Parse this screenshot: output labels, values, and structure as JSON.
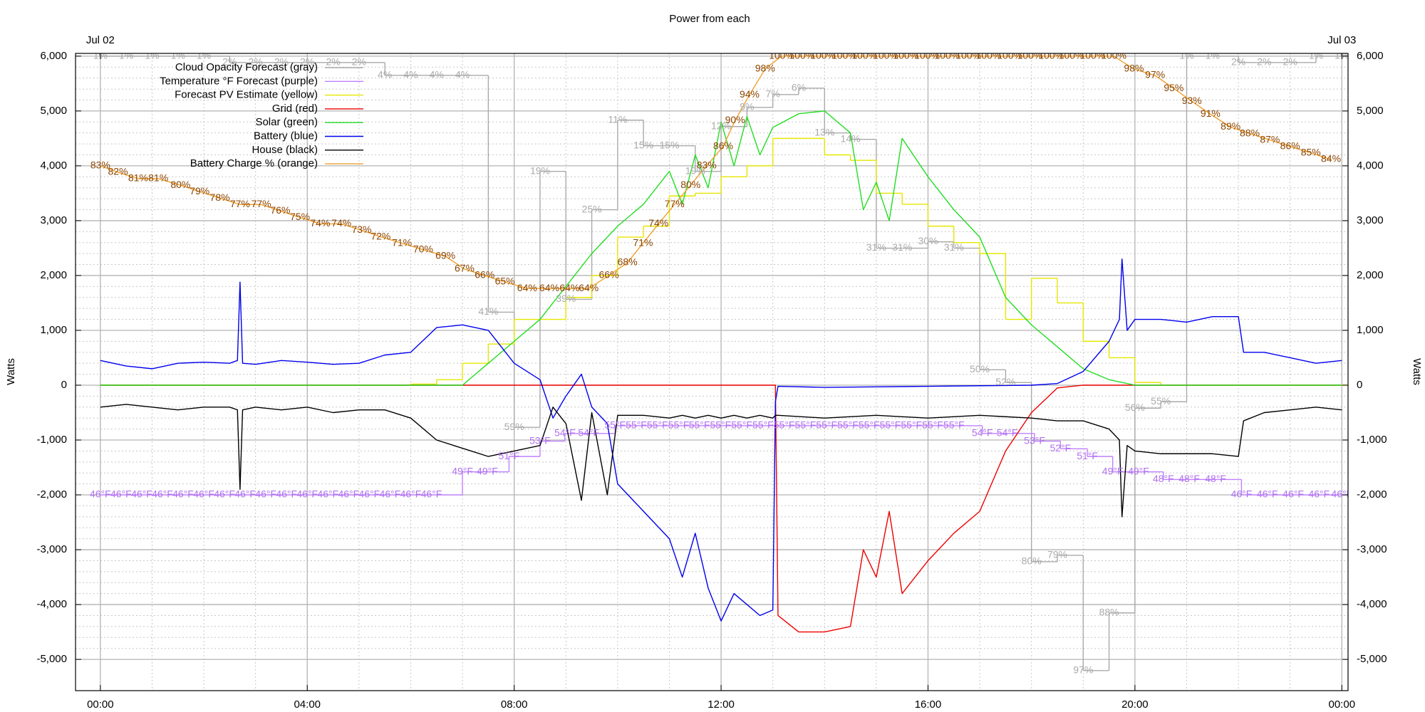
{
  "chart_data": {
    "type": "line",
    "title": "Power from each",
    "ylabel": "Watts",
    "xlim": [
      -0.48,
      24.12
    ],
    "xticks": [
      {
        "value": 0,
        "label": "00:00"
      },
      {
        "value": 4,
        "label": "04:00"
      },
      {
        "value": 8,
        "label": "08:00"
      },
      {
        "value": 12,
        "label": "12:00"
      },
      {
        "value": 16,
        "label": "16:00"
      },
      {
        "value": 20,
        "label": "20:00"
      },
      {
        "value": 24,
        "label": "00:00"
      }
    ],
    "x2ticks": [
      {
        "value": 0,
        "label": "Jul 02"
      },
      {
        "value": 24,
        "label": "Jul 03"
      }
    ],
    "ylim": [
      -5570,
      6050
    ],
    "yticks": [
      {
        "value": -5000,
        "label": "-5,000"
      },
      {
        "value": -4000,
        "label": "-4,000"
      },
      {
        "value": -3000,
        "label": "-3,000"
      },
      {
        "value": -2000,
        "label": "-2,000"
      },
      {
        "value": -1000,
        "label": "-1,000"
      },
      0,
      {
        "value": 1000,
        "label": "1,000"
      },
      {
        "value": 2000,
        "label": "2,000"
      },
      {
        "value": 3000,
        "label": "3,000"
      },
      {
        "value": 4000,
        "label": "4,000"
      },
      {
        "value": 5000,
        "label": "5,000"
      },
      {
        "value": 6000,
        "label": "6,000"
      }
    ],
    "y2lim": [
      1.66,
      100.42
    ],
    "y3lim": [
      20.5,
      103.5
    ],
    "y4lim": [
      100.14,
      0.57
    ],
    "grid": true,
    "legend": "top-left",
    "series": [
      {
        "name": "Cloud Opacity Forecast (gray)",
        "color": "#aaaaaa",
        "label_color": "#aaaaaa",
        "axis": "y4",
        "step": true,
        "x": [
          0,
          0.5,
          1,
          1.5,
          2,
          2.5,
          3,
          3.5,
          4,
          4.5,
          5,
          5.5,
          6,
          6.5,
          7,
          7.5,
          8,
          8.5,
          9,
          9.5,
          10,
          10.5,
          11,
          11.5,
          12,
          12.5,
          13,
          13.5,
          14,
          14.5,
          15,
          15.5,
          16,
          16.5,
          17,
          17.5,
          18,
          18.5,
          19,
          19.5,
          20,
          20.5,
          21,
          21.5,
          22,
          22.5,
          23,
          23.5,
          24
        ],
        "values": [
          1,
          1,
          1,
          1,
          1,
          2,
          2,
          2,
          2,
          2,
          2,
          4,
          4,
          4,
          4,
          41,
          59,
          19,
          39,
          25,
          11,
          15,
          15,
          19,
          12,
          9,
          7,
          6,
          13,
          14,
          31,
          31,
          30,
          31,
          50,
          52,
          80,
          79,
          97,
          88,
          56,
          55,
          1,
          1,
          2,
          2,
          2,
          1,
          1
        ],
        "value_labels": [
          "1%",
          "1%",
          "1%",
          "1%",
          "1%",
          "2%",
          "2%",
          "2%",
          "2%",
          "2%",
          "2%",
          "4%",
          "4%",
          "4%",
          "4%",
          "41%",
          "59%",
          "19%",
          "39%",
          "25%",
          "11%",
          "15%",
          "15%",
          "19%",
          "12%",
          "9%",
          "7%",
          "6%",
          "13%",
          "14%",
          "31%",
          "31%",
          "30%",
          "31%",
          "50%",
          "52%",
          "80%",
          "79%",
          "97%",
          "88%",
          "56%",
          "55%",
          "1%",
          "1%",
          "2%",
          "2%",
          "2%",
          "1%",
          "1%"
        ]
      },
      {
        "name": "Temperature °F Forecast (purple)",
        "color": "#c080ff",
        "label_color": "#b070f0",
        "axis": "y3",
        "step": true,
        "x": [
          0,
          0.4,
          0.8,
          1.2,
          1.6,
          2.0,
          2.4,
          2.8,
          3.2,
          3.6,
          4.0,
          4.4,
          4.8,
          5.2,
          5.6,
          6.0,
          6.4,
          7.0,
          7.48,
          7.9,
          8.5,
          8.98,
          9.44,
          9.95,
          10.36,
          10.77,
          11.18,
          11.58,
          11.99,
          12.4,
          12.81,
          13.22,
          13.63,
          14.04,
          14.45,
          14.86,
          15.27,
          15.68,
          16.09,
          16.5,
          17.05,
          17.53,
          18.06,
          18.56,
          19.08,
          19.57,
          20.07,
          20.55,
          21.05,
          21.56,
          22.06,
          22.56,
          23.06,
          23.56,
          24.0
        ],
        "values": [
          46,
          46,
          46,
          46,
          46,
          46,
          46,
          46,
          46,
          46,
          46,
          46,
          46,
          46,
          46,
          46,
          46,
          49,
          49,
          51,
          53,
          54,
          54,
          55,
          55,
          55,
          55,
          55,
          55,
          55,
          55,
          55,
          55,
          55,
          55,
          55,
          55,
          55,
          55,
          55,
          54,
          54,
          53,
          52,
          51,
          49,
          49,
          48,
          48,
          48,
          46,
          46,
          46,
          46,
          46
        ],
        "value_labels": [
          "46°F",
          "46°F",
          "46°F",
          "46°F",
          "46°F",
          "46°F",
          "46°F",
          "46°F",
          "46°F",
          "46°F",
          "46°F",
          "46°F",
          "46°F",
          "46°F",
          "46°F",
          "46°F",
          "46°F",
          "49°F",
          "49°F",
          "51°F",
          "53°F",
          "54°F",
          "54°F",
          "55°F",
          "55°F",
          "55°F",
          "55°F",
          "55°F",
          "55°F",
          "55°F",
          "55°F",
          "55°F",
          "55°F",
          "55°F",
          "55°F",
          "55°F",
          "55°F",
          "55°F",
          "55°F",
          "55°F",
          "54°F",
          "54°F",
          "53°F",
          "52°F",
          "51°F",
          "49°F",
          "49°F",
          "48°F",
          "48°F",
          "48°F",
          "46°F",
          "46°F",
          "46°F",
          "46°F",
          "46°F"
        ]
      },
      {
        "name": "Forecast PV Estimate (yellow)",
        "color": "#e6e600",
        "step": true,
        "x": [
          0,
          6,
          6.5,
          7,
          7.5,
          8,
          8.5,
          9,
          9.5,
          10,
          10.5,
          11,
          11.5,
          12,
          12.5,
          13,
          13.5,
          14,
          14.5,
          15,
          15.5,
          16,
          16.5,
          17,
          17.5,
          18,
          18.5,
          19,
          19.5,
          20,
          20.5
        ],
        "values": [
          0,
          20,
          100,
          400,
          750,
          1200,
          1200,
          1600,
          2000,
          2700,
          2900,
          3450,
          3500,
          3800,
          4000,
          4500,
          4500,
          4200,
          4100,
          3500,
          3300,
          2900,
          2600,
          2400,
          1200,
          1950,
          1500,
          800,
          500,
          50,
          0
        ]
      },
      {
        "name": "Grid (red)",
        "color": "#ee0000",
        "x": [
          0,
          13.05,
          13.1,
          13.5,
          14,
          14.5,
          14.75,
          15,
          15.25,
          15.5,
          16,
          16.5,
          17,
          17.5,
          18,
          18.5,
          19,
          24
        ],
        "values": [
          0,
          0,
          -4200,
          -4500,
          -4500,
          -4400,
          -3000,
          -3500,
          -2300,
          -3800,
          -3200,
          -2700,
          -2300,
          -1200,
          -500,
          -50,
          0,
          0
        ]
      },
      {
        "name": "Solar (green)",
        "color": "#22dd22",
        "x": [
          0,
          7,
          7.5,
          8,
          8.5,
          9,
          9.5,
          10,
          10.5,
          11,
          11.25,
          11.5,
          11.75,
          12,
          12.25,
          12.5,
          12.75,
          13,
          13.5,
          14,
          14.5,
          14.75,
          15,
          15.25,
          15.5,
          16,
          16.5,
          17,
          17.5,
          18,
          18.5,
          19,
          19.5,
          20,
          24
        ],
        "values": [
          0,
          0,
          400,
          800,
          1200,
          1800,
          2400,
          2900,
          3300,
          3900,
          3300,
          4200,
          3600,
          4800,
          4000,
          4900,
          4200,
          4700,
          4950,
          5000,
          4600,
          3200,
          3700,
          3000,
          4500,
          3800,
          3200,
          2700,
          1600,
          1100,
          700,
          300,
          100,
          0,
          0
        ]
      },
      {
        "name": "Battery (blue)",
        "color": "#0000ee",
        "x": [
          0,
          0.5,
          1,
          1.5,
          2,
          2.5,
          2.65,
          2.7,
          2.75,
          3,
          3.5,
          4,
          4.5,
          5,
          5.5,
          6,
          6.5,
          7,
          7.5,
          8,
          8.5,
          8.75,
          9,
          9.3,
          9.5,
          9.8,
          10,
          10.5,
          11,
          11.25,
          11.5,
          11.75,
          12,
          12.25,
          12.5,
          12.75,
          13,
          13.05,
          13.1,
          14,
          15,
          16,
          17,
          18,
          18.5,
          19,
          19.5,
          19.7,
          19.75,
          19.85,
          20,
          20.5,
          21,
          21.5,
          22,
          22.1,
          22.5,
          23,
          23.5,
          24
        ],
        "values": [
          450,
          350,
          300,
          400,
          420,
          400,
          450,
          1880,
          400,
          380,
          450,
          420,
          380,
          400,
          550,
          600,
          1050,
          1100,
          1000,
          400,
          100,
          -600,
          -200,
          200,
          -400,
          -700,
          -1800,
          -2300,
          -2800,
          -3500,
          -2700,
          -3700,
          -4300,
          -3800,
          -4000,
          -4200,
          -4100,
          -300,
          -20,
          -40,
          -30,
          -20,
          -10,
          0,
          30,
          250,
          800,
          1200,
          2300,
          1000,
          1200,
          1200,
          1150,
          1250,
          1250,
          600,
          600,
          500,
          400,
          450
        ]
      },
      {
        "name": "House (black)",
        "color": "#000000",
        "x": [
          0,
          0.5,
          1,
          1.5,
          2,
          2.5,
          2.65,
          2.7,
          2.75,
          3,
          3.5,
          4,
          4.5,
          5,
          5.5,
          6,
          6.5,
          7,
          7.5,
          8,
          8.5,
          8.75,
          9,
          9.3,
          9.5,
          9.8,
          10,
          10.5,
          11,
          11.25,
          11.5,
          11.75,
          12,
          12.25,
          12.5,
          12.75,
          13,
          13.05,
          13.1,
          14,
          15,
          16,
          17,
          18,
          18.5,
          19,
          19.5,
          19.7,
          19.75,
          19.85,
          20,
          20.5,
          21,
          21.5,
          22,
          22.1,
          22.5,
          23,
          23.5,
          24
        ],
        "values": [
          -400,
          -350,
          -400,
          -450,
          -400,
          -400,
          -450,
          -1900,
          -450,
          -400,
          -450,
          -400,
          -500,
          -450,
          -450,
          -600,
          -1000,
          -1150,
          -1300,
          -1200,
          -1100,
          -400,
          -700,
          -2100,
          -500,
          -2000,
          -550,
          -550,
          -600,
          -550,
          -600,
          -550,
          -600,
          -550,
          -600,
          -550,
          -600,
          -550,
          -550,
          -600,
          -550,
          -600,
          -550,
          -600,
          -650,
          -650,
          -800,
          -1000,
          -2400,
          -1100,
          -1200,
          -1250,
          -1250,
          -1250,
          -1300,
          -650,
          -500,
          -450,
          -400,
          -450
        ]
      },
      {
        "name": "Battery Charge % (orange)",
        "color": "#f0a030",
        "label_color": "#8b4500",
        "axis": "y2",
        "x": [
          0,
          0.34,
          0.73,
          1.12,
          1.55,
          1.92,
          2.31,
          2.7,
          3.11,
          3.48,
          3.86,
          4.25,
          4.66,
          5.05,
          5.42,
          5.83,
          6.24,
          6.67,
          7.04,
          7.43,
          7.82,
          8.25,
          8.68,
          9.07,
          9.44,
          9.83,
          10.19,
          10.49,
          10.79,
          11.1,
          11.41,
          11.72,
          12.04,
          12.27,
          12.55,
          12.85,
          13.17,
          13.56,
          13.97,
          14.38,
          14.77,
          15.18,
          15.57,
          15.98,
          16.37,
          16.78,
          17.17,
          17.58,
          17.97,
          18.38,
          18.77,
          19.18,
          19.59,
          19.98,
          20.39,
          20.75,
          21.1,
          21.46,
          21.85,
          22.22,
          22.61,
          23.0,
          23.4,
          23.79
        ],
        "values": [
          83,
          82,
          81,
          81,
          80,
          79,
          78,
          77,
          77,
          76,
          75,
          74,
          74,
          73,
          72,
          71,
          70,
          69,
          67,
          66,
          65,
          64,
          64,
          64,
          64,
          66,
          68,
          71,
          74,
          77,
          80,
          83,
          86,
          90,
          94,
          98,
          100,
          100,
          100,
          100,
          100,
          100,
          100,
          100,
          100,
          100,
          100,
          100,
          100,
          100,
          100,
          100,
          100,
          98,
          97,
          95,
          93,
          91,
          89,
          88,
          87,
          86,
          85,
          84
        ],
        "value_labels": [
          "83%",
          "82%",
          "81%",
          "81%",
          "80%",
          "79%",
          "78%",
          "77%",
          "77%",
          "76%",
          "75%",
          "74%",
          "74%",
          "73%",
          "72%",
          "71%",
          "70%",
          "69%",
          "67%",
          "66%",
          "65%",
          "64%",
          "64%",
          "64%",
          "64%",
          "66%",
          "68%",
          "71%",
          "74%",
          "77%",
          "80%",
          "83%",
          "86%",
          "90%",
          "94%",
          "98%",
          "100%",
          "100%",
          "100%",
          "100%",
          "100%",
          "100%",
          "100%",
          "100%",
          "100%",
          "100%",
          "100%",
          "100%",
          "100%",
          "100%",
          "100%",
          "100%",
          "100%",
          "98%",
          "97%",
          "95%",
          "93%",
          "91%",
          "89%",
          "88%",
          "87%",
          "86%",
          "85%",
          "84%"
        ]
      }
    ]
  }
}
